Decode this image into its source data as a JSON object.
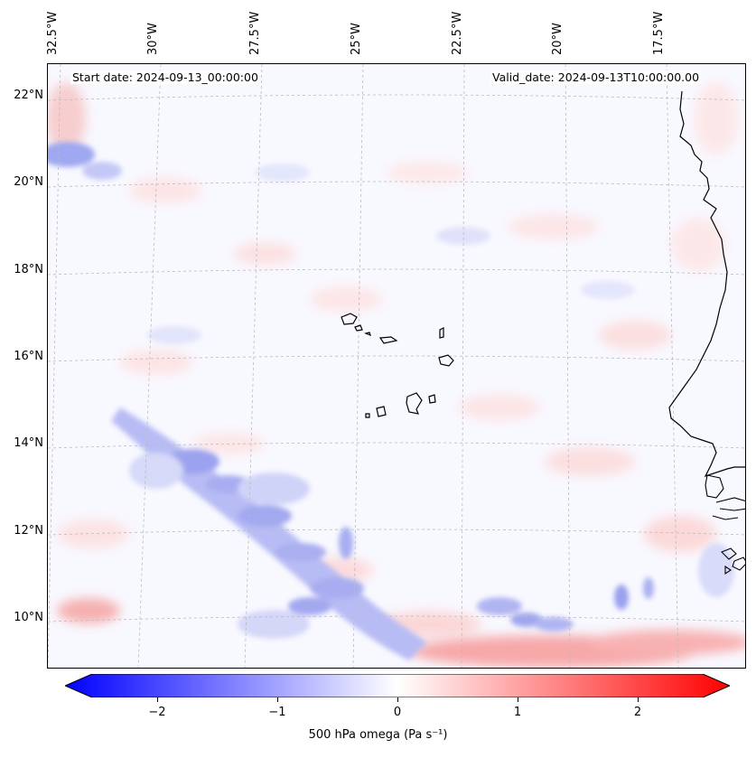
{
  "header": {
    "start_date": "Start date: 2024-09-13_00:00:00",
    "valid_date": "Valid_date: 2024-09-13T10:00:00.00"
  },
  "longitude_labels": [
    "32.5°W",
    "30°W",
    "27.5°W",
    "25°W",
    "22.5°W",
    "20°W",
    "17.5°W"
  ],
  "latitude_labels": [
    "22°N",
    "20°N",
    "18°N",
    "16°N",
    "14°N",
    "12°N",
    "10°N"
  ],
  "colorbar": {
    "label": "500 hPa omega (Pa s⁻¹)",
    "ticks": [
      "−2",
      "−1",
      "0",
      "1",
      "2"
    ],
    "tick_values": [
      -2,
      -1,
      0,
      1,
      2
    ],
    "range": [
      -2.75,
      2.75
    ],
    "colormap": "bwr",
    "low_color": "#0000ff",
    "mid_color": "#ffffff",
    "high_color": "#ff0000",
    "extend": "both"
  },
  "map": {
    "field": "500 hPa omega",
    "lon_range": [
      -33.0,
      -15.4
    ],
    "lat_range": [
      8.9,
      22.8
    ],
    "coastline_color": "#000000",
    "gridline_color": "#bbbbbb"
  }
}
